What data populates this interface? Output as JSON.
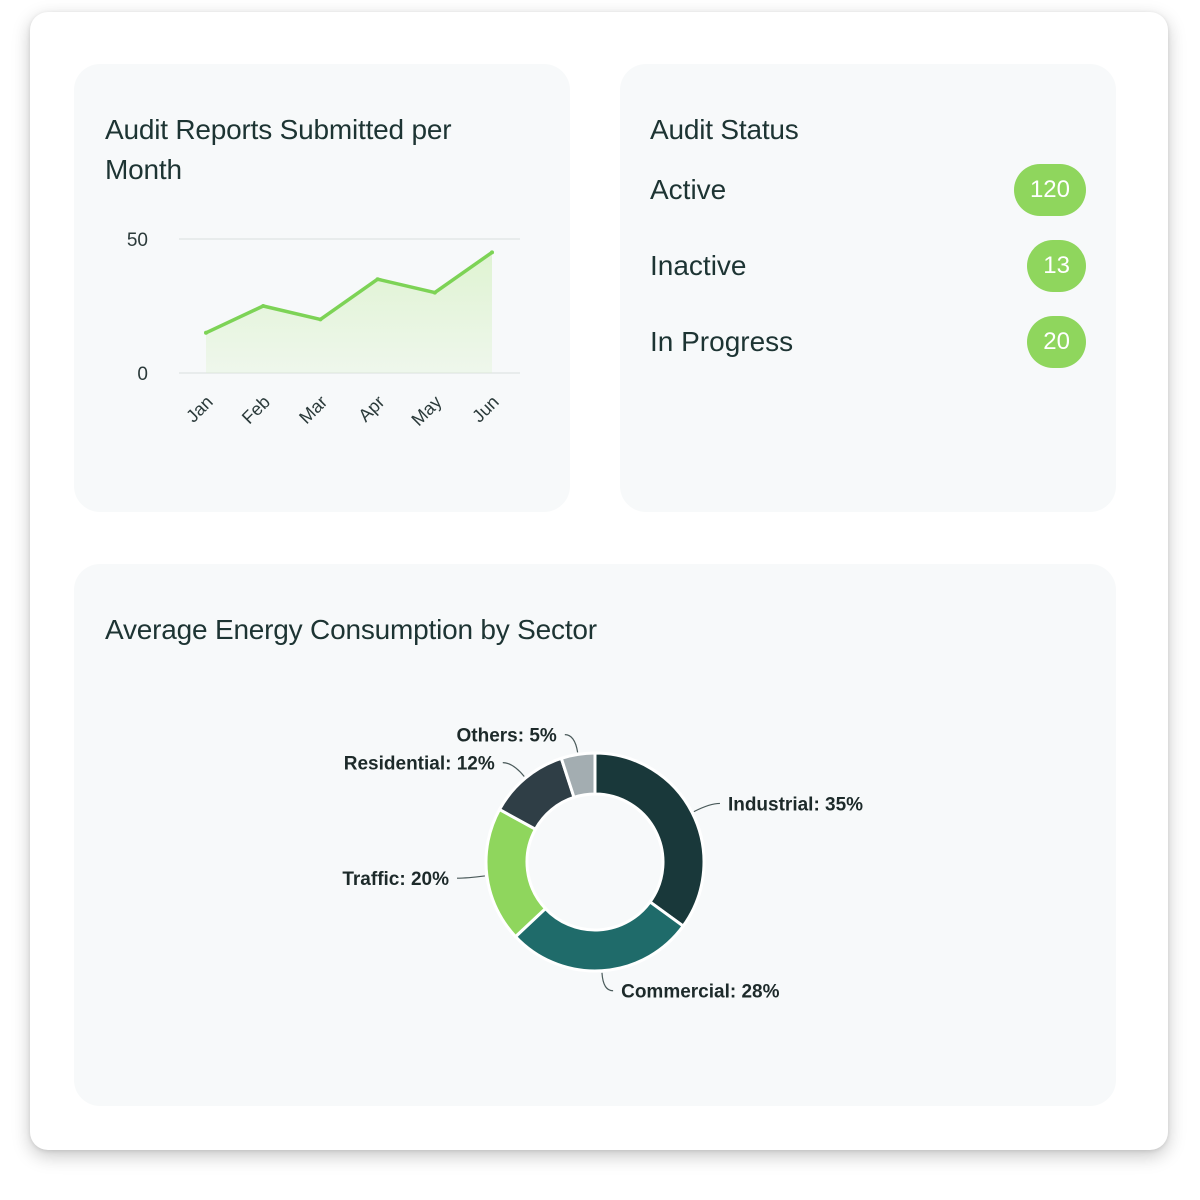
{
  "audit_reports": {
    "title": "Audit Reports Submitted per Month",
    "chart_data": {
      "type": "area",
      "categories": [
        "Jan",
        "Feb",
        "Mar",
        "Apr",
        "May",
        "Jun"
      ],
      "values": [
        15,
        25,
        20,
        35,
        30,
        45
      ],
      "ylim": [
        0,
        50
      ],
      "yticks": [
        "0",
        "50"
      ],
      "line_color": "#7dd356",
      "fill_color": "#dff3d2",
      "grid": true
    }
  },
  "audit_status": {
    "title": "Audit Status",
    "items": [
      {
        "label": "Active",
        "count": "120"
      },
      {
        "label": "Inactive",
        "count": "13"
      },
      {
        "label": "In Progress",
        "count": "20"
      }
    ],
    "badge_color": "#8fd65d"
  },
  "energy": {
    "title": "Average Energy Consumption by Sector",
    "chart_data": {
      "type": "pie",
      "donut": true,
      "slices": [
        {
          "name": "Industrial",
          "value": 35,
          "label": "Industrial: 35%",
          "color": "#19383a"
        },
        {
          "name": "Commercial",
          "value": 28,
          "label": "Commercial: 28%",
          "color": "#1f6b6a"
        },
        {
          "name": "Traffic",
          "value": 20,
          "label": "Traffic: 20%",
          "color": "#8fd65d"
        },
        {
          "name": "Residential",
          "value": 12,
          "label": "Residential: 12%",
          "color": "#2f3e46"
        },
        {
          "name": "Others",
          "value": 5,
          "label": "Others: 5%",
          "color": "#a3adb1"
        }
      ]
    }
  }
}
